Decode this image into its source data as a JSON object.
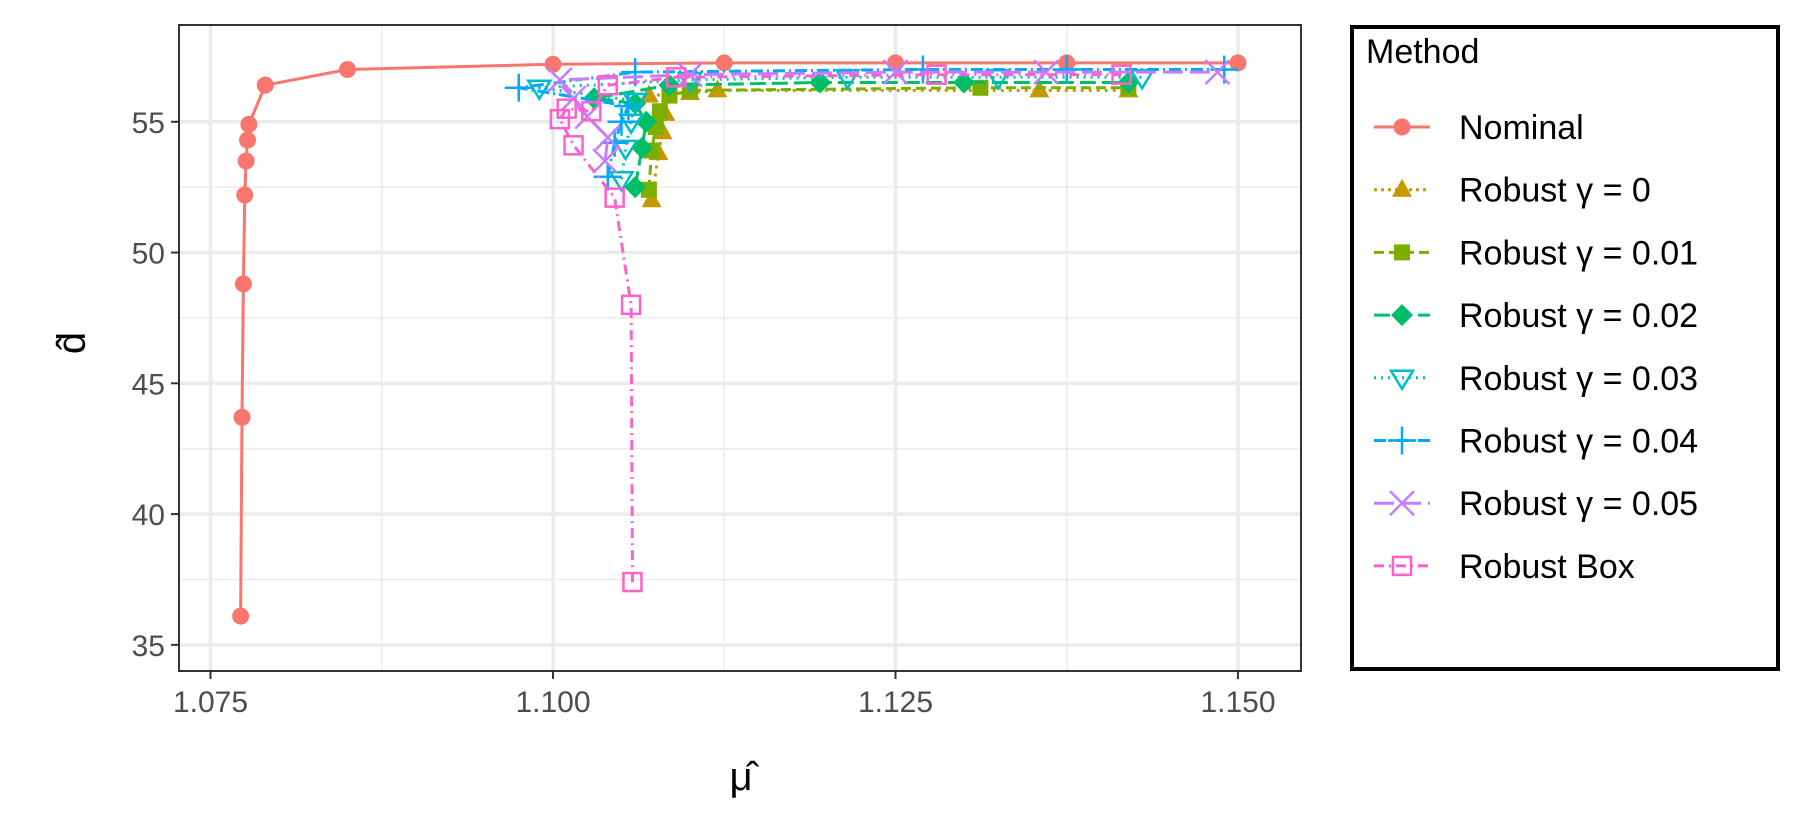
{
  "chart_data": {
    "type": "line",
    "xlabel": "μ̂",
    "ylabel": "d̂",
    "xlim": [
      1.0727,
      1.1546
    ],
    "ylim": [
      34.0,
      58.7
    ],
    "xticks": [
      "1.075",
      "1.100",
      "1.125",
      "1.150"
    ],
    "yticks": [
      "35",
      "40",
      "45",
      "50",
      "55"
    ],
    "grid": true,
    "legend": {
      "title": "Method",
      "position": "right"
    },
    "series": [
      {
        "name": "Nominal",
        "color": "#F8766D",
        "marker": "circle",
        "dash": "solid",
        "points": [
          [
            1.0772,
            36.1
          ],
          [
            1.0773,
            43.7
          ],
          [
            1.0774,
            48.8
          ],
          [
            1.0775,
            52.2
          ],
          [
            1.0776,
            53.5
          ],
          [
            1.0777,
            54.3
          ],
          [
            1.0778,
            54.9
          ],
          [
            1.079,
            56.4
          ],
          [
            1.085,
            57.0
          ],
          [
            1.1,
            57.2
          ],
          [
            1.1125,
            57.25
          ],
          [
            1.125,
            57.25
          ],
          [
            1.1375,
            57.25
          ],
          [
            1.15,
            57.25
          ]
        ]
      },
      {
        "name": "Robust γ = 0",
        "color": "#C49A00",
        "marker": "triangle",
        "dash": "3,5",
        "points": [
          [
            1.1072,
            52.0
          ],
          [
            1.1077,
            53.8
          ],
          [
            1.108,
            54.6
          ],
          [
            1.1082,
            55.3
          ],
          [
            1.107,
            56.0
          ],
          [
            1.11,
            56.1
          ],
          [
            1.112,
            56.2
          ],
          [
            1.1355,
            56.2
          ],
          [
            1.142,
            56.2
          ]
        ]
      },
      {
        "name": "Robust γ = 0.01",
        "color": "#7CAE00",
        "marker": "square",
        "dash": "10,5",
        "points": [
          [
            1.107,
            52.4
          ],
          [
            1.1072,
            53.9
          ],
          [
            1.1075,
            54.8
          ],
          [
            1.1078,
            55.4
          ],
          [
            1.1085,
            56.0
          ],
          [
            1.11,
            56.2
          ],
          [
            1.1312,
            56.3
          ],
          [
            1.142,
            56.3
          ]
        ]
      },
      {
        "name": "Robust γ = 0.02",
        "color": "#00BE67",
        "marker": "diamond",
        "dash": "16,6",
        "points": [
          [
            1.106,
            52.5
          ],
          [
            1.1065,
            54.0
          ],
          [
            1.1068,
            55.0
          ],
          [
            1.106,
            55.7
          ],
          [
            1.103,
            55.9
          ],
          [
            1.1085,
            56.4
          ],
          [
            1.1195,
            56.5
          ],
          [
            1.13,
            56.5
          ],
          [
            1.142,
            56.5
          ]
        ]
      },
      {
        "name": "Robust γ = 0.03",
        "color": "#00BFC4",
        "marker": "triangle-down",
        "dash": "2,5",
        "points": [
          [
            1.105,
            52.8
          ],
          [
            1.1053,
            54.0
          ],
          [
            1.1057,
            55.0
          ],
          [
            1.106,
            55.8
          ],
          [
            1.099,
            56.3
          ],
          [
            1.11,
            56.6
          ],
          [
            1.1215,
            56.7
          ],
          [
            1.1325,
            56.7
          ],
          [
            1.143,
            56.7
          ]
        ]
      },
      {
        "name": "Robust γ = 0.04",
        "color": "#00A9FF",
        "marker": "plus",
        "dash": "12,4,2,4",
        "points": [
          [
            1.104,
            52.9
          ],
          [
            1.1045,
            54.2
          ],
          [
            1.105,
            55.0
          ],
          [
            1.1055,
            55.6
          ],
          [
            1.0975,
            56.3
          ],
          [
            1.106,
            56.9
          ],
          [
            1.127,
            57.0
          ],
          [
            1.1375,
            57.0
          ],
          [
            1.149,
            57.0
          ]
        ]
      },
      {
        "name": "Robust γ = 0.05",
        "color": "#C77CFF",
        "marker": "cross",
        "dash": "20,7",
        "points": [
          [
            1.1038,
            53.5
          ],
          [
            1.104,
            54.4
          ],
          [
            1.1025,
            55.2
          ],
          [
            1.1015,
            55.9
          ],
          [
            1.1005,
            56.6
          ],
          [
            1.11,
            56.8
          ],
          [
            1.125,
            56.9
          ],
          [
            1.136,
            56.9
          ],
          [
            1.1485,
            56.9
          ]
        ]
      },
      {
        "name": "Robust Box",
        "color": "#FF61CC",
        "marker": "box",
        "dash": "10,5,2,5",
        "points": [
          [
            1.1058,
            37.4
          ],
          [
            1.1057,
            48.0
          ],
          [
            1.1045,
            52.1
          ],
          [
            1.1015,
            54.1
          ],
          [
            1.1005,
            55.1
          ],
          [
            1.101,
            55.5
          ],
          [
            1.1028,
            55.4
          ],
          [
            1.104,
            56.4
          ],
          [
            1.109,
            56.7
          ],
          [
            1.128,
            56.8
          ],
          [
            1.1415,
            56.8
          ]
        ]
      }
    ]
  }
}
